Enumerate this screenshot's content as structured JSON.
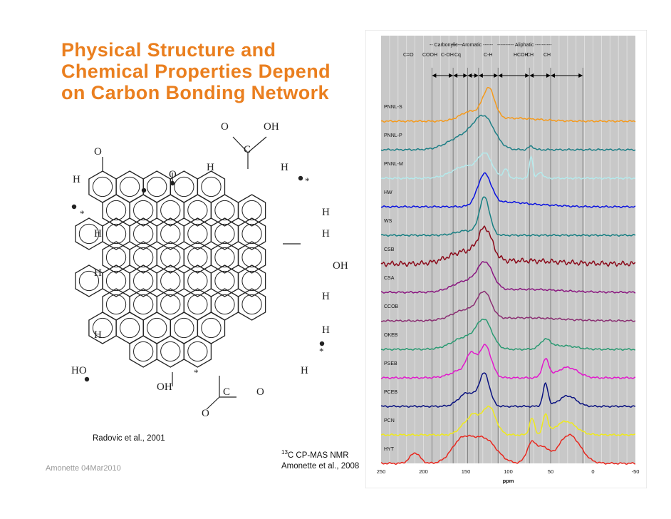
{
  "slide": {
    "title_lines": [
      "Physical Structure and",
      "Chemical Properties Depend",
      "on Carbon Bonding Network"
    ],
    "left_citation": "Radovic et al., 2001",
    "nmr_caption_sup": "13",
    "nmr_caption_main": "C CP-MAS NMR",
    "nmr_caption_line2": "Amonette et al., 2008",
    "footer": "Amonette 04Mar2010"
  },
  "molecule": {
    "labels": [
      {
        "t": "O"
      },
      {
        "t": "OH"
      },
      {
        "t": "C"
      },
      {
        "t": "O"
      },
      {
        "t": "H"
      },
      {
        "t": "O"
      },
      {
        "t": "H"
      },
      {
        "t": "H"
      },
      {
        "t": "H"
      },
      {
        "t": "H"
      },
      {
        "t": "H"
      },
      {
        "t": "H"
      },
      {
        "t": "OH"
      },
      {
        "t": "H"
      },
      {
        "t": "H"
      },
      {
        "t": "H"
      },
      {
        "t": "HO"
      },
      {
        "t": "OH"
      },
      {
        "t": "C"
      },
      {
        "t": "O"
      },
      {
        "t": "O"
      },
      {
        "t": "H"
      },
      {
        "t": "*"
      },
      {
        "t": "*"
      },
      {
        "t": "*"
      },
      {
        "t": "*"
      }
    ]
  },
  "chart_data": {
    "type": "line",
    "xlabel": "ppm",
    "xlim": [
      250,
      -50
    ],
    "xticks": [
      "250",
      "200",
      "150",
      "100",
      "50",
      "0",
      "-50"
    ],
    "xtick_values": [
      250,
      200,
      150,
      100,
      50,
      0,
      -50
    ],
    "band_header_groups": [
      "-- Carbonylic --",
      "------ Aromatic ------",
      "---------- Aliphatic ----------"
    ],
    "band_header_labels": [
      "C=O",
      "COOH",
      "C-OH",
      "Cq",
      "C-H",
      "HCOH",
      "CH",
      "CH"
    ],
    "region_boundaries_ppm": [
      190,
      165,
      148,
      135,
      112,
      75,
      50,
      12
    ],
    "series": [
      {
        "name": "PNNL-S",
        "color": "#f59a1c",
        "peaks": [
          [
            145,
            0.3,
            12
          ],
          [
            123,
            1.0,
            7
          ],
          [
            95,
            0.1,
            30
          ]
        ]
      },
      {
        "name": "PNNL-P",
        "color": "#1e7f86",
        "peaks": [
          [
            152,
            0.45,
            18
          ],
          [
            128,
            0.95,
            12
          ],
          [
            73,
            0.12,
            3
          ]
        ]
      },
      {
        "name": "PNNL-M",
        "color": "#b4eaec",
        "peaks": [
          [
            150,
            0.4,
            16
          ],
          [
            127,
            0.7,
            8
          ],
          [
            103,
            0.3,
            3
          ],
          [
            73,
            0.75,
            2
          ],
          [
            62,
            0.2,
            3
          ]
        ]
      },
      {
        "name": "HW",
        "color": "#0a12e0",
        "peaks": [
          [
            128,
            1.05,
            8
          ],
          [
            100,
            0.15,
            20
          ],
          [
            55,
            0.05,
            20
          ]
        ]
      },
      {
        "name": "WS",
        "color": "#167f82",
        "peaks": [
          [
            128,
            1.25,
            6
          ],
          [
            150,
            0.15,
            12
          ]
        ]
      },
      {
        "name": "CSB",
        "color": "#8b0a1a",
        "peaks": [
          [
            150,
            0.4,
            20
          ],
          [
            127,
            0.95,
            8
          ],
          [
            80,
            0.1,
            40
          ]
        ]
      },
      {
        "name": "CSA",
        "color": "#8a1680",
        "peaks": [
          [
            150,
            0.35,
            16
          ],
          [
            127,
            0.85,
            9
          ],
          [
            80,
            0.1,
            40
          ]
        ]
      },
      {
        "name": "CCOB",
        "color": "#8b2f73",
        "peaks": [
          [
            150,
            0.35,
            16
          ],
          [
            128,
            0.8,
            8
          ],
          [
            80,
            0.1,
            40
          ]
        ]
      },
      {
        "name": "OKEB",
        "color": "#2a9a72",
        "peaks": [
          [
            150,
            0.4,
            16
          ],
          [
            128,
            0.85,
            9
          ],
          [
            56,
            0.3,
            6
          ],
          [
            35,
            0.12,
            15
          ]
        ]
      },
      {
        "name": "PSEB",
        "color": "#e218cc",
        "peaks": [
          [
            150,
            0.3,
            15
          ],
          [
            144,
            0.55,
            5
          ],
          [
            127,
            1.0,
            7
          ],
          [
            56,
            0.6,
            4
          ],
          [
            30,
            0.35,
            12
          ]
        ]
      },
      {
        "name": "PCEB",
        "color": "#0a1280",
        "peaks": [
          [
            148,
            0.45,
            10
          ],
          [
            128,
            1.05,
            6
          ],
          [
            56,
            0.75,
            3
          ],
          [
            30,
            0.35,
            10
          ]
        ]
      },
      {
        "name": "PCN",
        "color": "#f0ea1a",
        "peaks": [
          [
            150,
            0.35,
            8
          ],
          [
            140,
            0.45,
            6
          ],
          [
            123,
            0.95,
            8
          ],
          [
            72,
            0.55,
            3
          ],
          [
            56,
            0.65,
            3
          ],
          [
            32,
            0.45,
            12
          ]
        ]
      },
      {
        "name": "HYT",
        "color": "#e8281f",
        "peaks": [
          [
            210,
            0.35,
            6
          ],
          [
            155,
            0.75,
            12
          ],
          [
            128,
            0.8,
            14
          ],
          [
            72,
            0.7,
            6
          ],
          [
            58,
            0.45,
            6
          ],
          [
            28,
            0.95,
            13
          ]
        ]
      }
    ]
  }
}
